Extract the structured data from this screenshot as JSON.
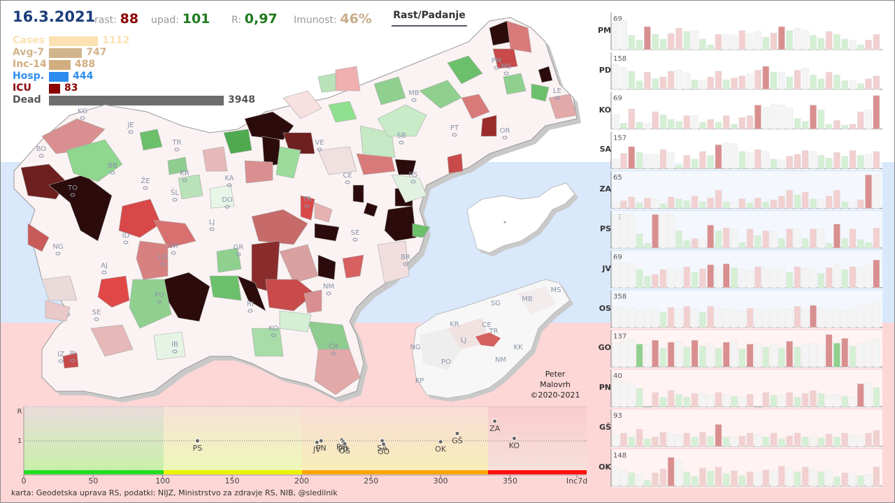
{
  "header": {
    "date": "16.3.2021",
    "rast_label": "rast:",
    "rast_value": "88",
    "upad_label": "upad:",
    "upad_value": "101",
    "r_label": "R:",
    "r_value": "0,97",
    "imunost_label": "Imunost:",
    "imunost_value": "46%",
    "button_label": "Rast/Padanje"
  },
  "stats": [
    {
      "label": "Cases",
      "value": "1112",
      "num": 1112,
      "color": "#fde1b2"
    },
    {
      "label": "Avg-7",
      "value": "747",
      "num": 747,
      "color": "#d2b48c"
    },
    {
      "label": "Inc-14",
      "value": "488",
      "num": 488,
      "color": "#d2ad7f"
    },
    {
      "label": "Hosp.",
      "value": "444",
      "num": 444,
      "color": "#2b8cee"
    },
    {
      "label": "ICU",
      "value": "83",
      "num": 83,
      "color": "#8b0000"
    },
    {
      "label": "Dead",
      "value": "3948",
      "num": 3948,
      "color": "#6e6e6e"
    }
  ],
  "map": {
    "region_labels": [
      "PM",
      "MS",
      "MB",
      "LE",
      "KG",
      "JE",
      "TR",
      "BO",
      "SB",
      "PT",
      "OR",
      "VE",
      "BB",
      "KR",
      "ŽE",
      "KA",
      "CE",
      "RS",
      "TO",
      "ŠL",
      "DO",
      "TR",
      "LJ",
      "SE",
      "NG",
      "ID",
      "VR",
      "GR",
      "BR",
      "AJ",
      "LO",
      "PO",
      "NM",
      "SE",
      "RI",
      "KO",
      "IB",
      "ČR",
      "IZ",
      "PI"
    ],
    "inset_labels": [
      "MS",
      "SG",
      "MB",
      "KR",
      "CE",
      "TR",
      "LJ",
      "NG",
      "KK",
      "PO",
      "NM",
      "KP"
    ]
  },
  "credit": {
    "line1": "Peter",
    "line2": "Malovrh",
    "line3": "©2020-2021"
  },
  "scatter": {
    "y_labels": [
      "R",
      "1"
    ],
    "x_ticks": [
      "0",
      "50",
      "100",
      "150",
      "200",
      "250",
      "300",
      "350",
      "Inc7d"
    ],
    "points": [
      {
        "label": "PS",
        "x": 125,
        "y": 1.0
      },
      {
        "label": "JV",
        "x": 211,
        "y": 0.97
      },
      {
        "label": "PN",
        "x": 214,
        "y": 1.0
      },
      {
        "label": "PM",
        "x": 229,
        "y": 1.02
      },
      {
        "label": "PD",
        "x": 230,
        "y": 0.98
      },
      {
        "label": "OS",
        "x": 231,
        "y": 0.94
      },
      {
        "label": "SA",
        "x": 258,
        "y": 1.0
      },
      {
        "label": "GO",
        "x": 259,
        "y": 0.93
      },
      {
        "label": "OK",
        "x": 300,
        "y": 0.98
      },
      {
        "label": "GŠ",
        "x": 312,
        "y": 1.15
      },
      {
        "label": "ZA",
        "x": 339,
        "y": 1.4
      },
      {
        "label": "KO",
        "x": 353,
        "y": 1.05
      }
    ]
  },
  "footer": "karta: Geodetska uprava RS,  podatki: NIJZ, Ministrstvo za zdravje RS, NIB, @sledilnik",
  "chart_data": {
    "type": "bar",
    "title": "",
    "series": [
      {
        "name": "PM",
        "max": "69",
        "values": [
          56,
          62,
          30,
          20,
          48,
          32,
          22,
          34,
          45,
          38,
          40,
          22,
          10,
          32,
          32,
          30,
          40,
          34,
          38,
          26,
          35,
          48,
          40,
          45,
          40,
          30,
          24,
          38,
          32,
          22,
          20,
          10,
          20,
          32
        ]
      },
      {
        "name": "PD",
        "max": "158",
        "values": [
          52,
          46,
          38,
          18,
          36,
          22,
          26,
          38,
          40,
          34,
          20,
          18,
          26,
          38,
          20,
          24,
          28,
          32,
          40,
          48,
          36,
          36,
          26,
          40,
          44,
          30,
          22,
          36,
          30,
          18,
          18,
          12,
          22,
          28
        ]
      },
      {
        "name": "KO",
        "max": "69",
        "values": [
          30,
          12,
          42,
          14,
          12,
          36,
          30,
          20,
          16,
          28,
          28,
          14,
          20,
          14,
          28,
          10,
          24,
          28,
          50,
          46,
          52,
          50,
          44,
          22,
          16,
          50,
          40,
          10,
          18,
          8,
          10,
          36,
          40,
          70
        ]
      },
      {
        "name": "SA",
        "max": "157",
        "values": [
          20,
          32,
          46,
          34,
          30,
          30,
          40,
          34,
          8,
          28,
          20,
          36,
          28,
          50,
          54,
          52,
          36,
          34,
          40,
          36,
          20,
          18,
          26,
          30,
          38,
          36,
          28,
          22,
          34,
          26,
          38,
          28,
          30,
          36
        ]
      },
      {
        "name": "ZA",
        "max": "65",
        "values": [
          12,
          16,
          24,
          12,
          22,
          20,
          10,
          24,
          20,
          16,
          26,
          14,
          22,
          38,
          14,
          14,
          20,
          12,
          22,
          14,
          18,
          26,
          38,
          28,
          34,
          20,
          18,
          26,
          38,
          14,
          14,
          18,
          70,
          70
        ]
      },
      {
        "name": "PS",
        "max": "29",
        "values": [
          70,
          70,
          70,
          30,
          10,
          70,
          70,
          70,
          36,
          16,
          20,
          20,
          48,
          36,
          42,
          40,
          12,
          40,
          26,
          36,
          36,
          20,
          40,
          40,
          20,
          40,
          40,
          10,
          50,
          20,
          40,
          18,
          12,
          42
        ]
      },
      {
        "name": "JV",
        "max": "69",
        "values": [
          60,
          52,
          50,
          38,
          24,
          28,
          38,
          40,
          36,
          44,
          32,
          40,
          48,
          42,
          50,
          42,
          38,
          36,
          44,
          42,
          38,
          42,
          32,
          44,
          40,
          38,
          30,
          42,
          48,
          38,
          44,
          42,
          48,
          58
        ]
      },
      {
        "name": "OS",
        "max": "358",
        "values": [
          44,
          42,
          40,
          34,
          38,
          38,
          32,
          42,
          38,
          44,
          40,
          32,
          44,
          40,
          38,
          38,
          34,
          40,
          38,
          36,
          38,
          40,
          38,
          44,
          38,
          46,
          40,
          36,
          38,
          36,
          40,
          46,
          48,
          54
        ]
      },
      {
        "name": "GO",
        "max": "137",
        "values": [
          50,
          54,
          60,
          48,
          46,
          56,
          40,
          52,
          54,
          42,
          56,
          44,
          50,
          40,
          52,
          56,
          38,
          48,
          50,
          42,
          48,
          40,
          54,
          42,
          48,
          50,
          46,
          68,
          50,
          60,
          44,
          50,
          56,
          58
        ]
      },
      {
        "name": "PN",
        "max": "40",
        "values": [
          58,
          52,
          48,
          38,
          0,
          30,
          20,
          34,
          26,
          20,
          28,
          28,
          24,
          30,
          26,
          22,
          20,
          26,
          0,
          30,
          24,
          22,
          30,
          20,
          28,
          34,
          28,
          24,
          26,
          22,
          20,
          48,
          50,
          40
        ]
      },
      {
        "name": "GŠ",
        "max": "93",
        "values": [
          24,
          28,
          20,
          36,
          16,
          20,
          30,
          26,
          24,
          28,
          20,
          30,
          22,
          46,
          20,
          18,
          22,
          28,
          24,
          20,
          28,
          16,
          22,
          28,
          20,
          22,
          18,
          26,
          20,
          28,
          24,
          22,
          28,
          34
        ]
      },
      {
        "name": "OK",
        "max": "148",
        "values": [
          40,
          34,
          28,
          26,
          12,
          28,
          36,
          60,
          54,
          30,
          20,
          38,
          32,
          40,
          26,
          32,
          22,
          30,
          26,
          34,
          32,
          42,
          38,
          30,
          40,
          36,
          30,
          34,
          20,
          28,
          26,
          22,
          24,
          40
        ]
      }
    ]
  }
}
